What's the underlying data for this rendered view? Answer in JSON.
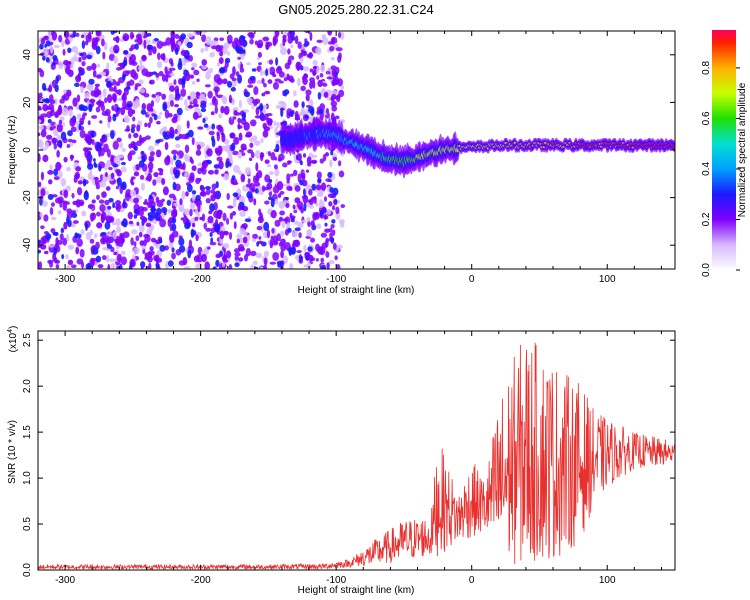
{
  "title": "GN05.2025.280.22.31.C24",
  "colors": {
    "plot_line": "#e8302e",
    "frame": "#000000"
  },
  "colorbar": {
    "label": "Normalized spectral amplitude",
    "ticks": [
      "0.0",
      "0.2",
      "0.4",
      "0.6",
      "0.8"
    ],
    "tick_values": [
      0.0,
      0.2,
      0.4,
      0.6,
      0.8
    ],
    "range": [
      0,
      0.95
    ],
    "stops": [
      {
        "v": 0.0,
        "color": "#ffffff"
      },
      {
        "v": 0.1,
        "color": "#d6b8ff"
      },
      {
        "v": 0.2,
        "color": "#7f00ff"
      },
      {
        "v": 0.3,
        "color": "#1a1aff"
      },
      {
        "v": 0.4,
        "color": "#00a0ff"
      },
      {
        "v": 0.5,
        "color": "#00e0d0"
      },
      {
        "v": 0.6,
        "color": "#20e000"
      },
      {
        "v": 0.7,
        "color": "#c8ff00"
      },
      {
        "v": 0.8,
        "color": "#ffb000"
      },
      {
        "v": 0.9,
        "color": "#ff2000"
      },
      {
        "v": 0.95,
        "color": "#ff0060"
      }
    ]
  },
  "chart_data": [
    {
      "type": "heatmap",
      "title": "GN05.2025.280.22.31.C24",
      "xlabel": "Height of straight line (km)",
      "ylabel": "Frequency (Hz)",
      "xlim": [
        -320,
        150
      ],
      "ylim": [
        -50,
        50
      ],
      "xticks": [
        -300,
        -200,
        -100,
        0,
        100
      ],
      "xtick_labels": [
        "-300",
        "-200",
        "-100",
        "0",
        "100"
      ],
      "yticks": [
        -40,
        -20,
        0,
        20,
        40
      ],
      "ytick_labels": [
        "-40",
        "-20",
        "0",
        "20",
        "40"
      ],
      "description_series": {
        "noise_region_x": [
          -320,
          -100
        ],
        "ridge": {
          "name": "frequency ridge",
          "x": [
            -140,
            -130,
            -120,
            -110,
            -100,
            -90,
            -80,
            -70,
            -60,
            -50,
            -40,
            -30,
            -20,
            -10,
            0,
            20,
            40,
            60,
            80,
            100,
            120,
            150
          ],
          "y": [
            4,
            5,
            6,
            7,
            6,
            3,
            1,
            -2,
            -4,
            -5,
            -3,
            -1,
            0,
            1,
            1,
            2,
            2,
            2,
            2,
            2,
            2,
            2
          ],
          "amplitude": [
            0.25,
            0.3,
            0.32,
            0.35,
            0.4,
            0.45,
            0.45,
            0.5,
            0.55,
            0.6,
            0.65,
            0.7,
            0.72,
            0.75,
            0.78,
            0.8,
            0.82,
            0.85,
            0.87,
            0.9,
            0.92,
            0.95
          ]
        }
      }
    },
    {
      "type": "line",
      "xlabel": "Height of straight line (km)",
      "ylabel": "SNR (10 * v/v)",
      "y_multiplier": "(x10",
      "y_multiplier_exp": "4",
      "y_multiplier_close": ")",
      "xlim": [
        -320,
        150
      ],
      "ylim": [
        0,
        2.6
      ],
      "xticks": [
        -300,
        -200,
        -100,
        0,
        100
      ],
      "xtick_labels": [
        "-300",
        "-200",
        "-100",
        "0",
        "100"
      ],
      "yticks": [
        0,
        0.5,
        1.0,
        1.5,
        2.0,
        2.5
      ],
      "ytick_labels": [
        "0.0",
        "0.5",
        "1.0",
        "1.5",
        "2.0",
        "2.5"
      ],
      "series": [
        {
          "name": "SNR",
          "x": [
            -320,
            -250,
            -150,
            -110,
            -90,
            -70,
            -50,
            -30,
            -25,
            -10,
            0,
            10,
            20,
            30,
            40,
            50,
            60,
            70,
            80,
            90,
            100,
            120,
            150
          ],
          "y_min": [
            0.01,
            0.01,
            0.01,
            0.01,
            0.03,
            0.05,
            0.1,
            0.15,
            0.15,
            0.3,
            0.35,
            0.4,
            0.1,
            0.05,
            0.05,
            0.1,
            0.1,
            0.2,
            0.3,
            0.7,
            0.9,
            1.1,
            1.15
          ],
          "y_max": [
            0.06,
            0.06,
            0.06,
            0.07,
            0.12,
            0.35,
            0.55,
            0.6,
            1.45,
            0.85,
            1.2,
            1.0,
            1.85,
            2.3,
            2.6,
            2.45,
            2.3,
            2.15,
            2.05,
            1.75,
            1.65,
            1.5,
            1.4
          ]
        }
      ]
    }
  ]
}
